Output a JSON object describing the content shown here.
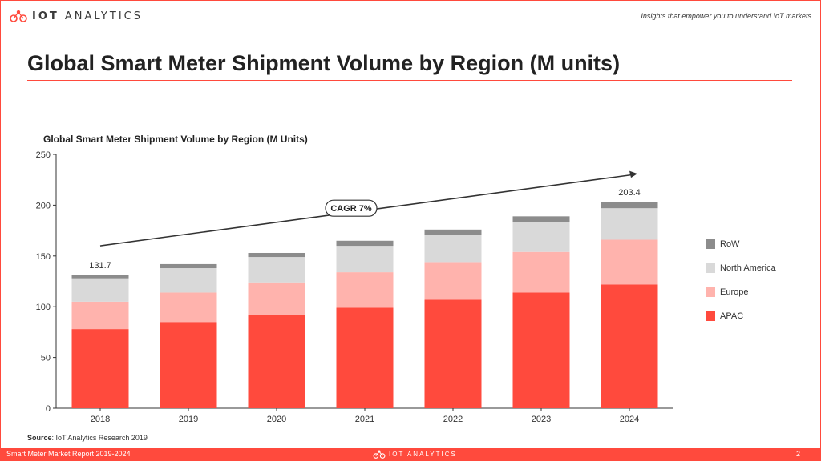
{
  "header": {
    "logo_iot": "IOT",
    "logo_rest": "ANALYTICS",
    "tagline": "Insights that empower you to understand IoT markets"
  },
  "slide_title": "Global Smart Meter Shipment Volume by Region (M units)",
  "chart_data": {
    "type": "bar",
    "stacked": true,
    "title": "Global Smart Meter Shipment Volume by Region (M Units)",
    "categories": [
      "2018",
      "2019",
      "2020",
      "2021",
      "2022",
      "2023",
      "2024"
    ],
    "series": [
      {
        "name": "APAC",
        "color": "#ff4a3d",
        "values": [
          78,
          85,
          92,
          99,
          107,
          114,
          122
        ]
      },
      {
        "name": "Europe",
        "color": "#ffb3ad",
        "values": [
          27,
          29,
          32,
          35,
          37,
          40,
          44
        ]
      },
      {
        "name": "North America",
        "color": "#d9d9d9",
        "values": [
          23,
          24,
          25,
          26,
          27,
          29,
          31
        ]
      },
      {
        "name": "RoW",
        "color": "#8c8c8c",
        "values": [
          3.7,
          4,
          4,
          5,
          5,
          6,
          6.4
        ]
      }
    ],
    "ylim": [
      0,
      250
    ],
    "yticks": [
      0,
      50,
      100,
      150,
      200,
      250
    ],
    "data_labels": [
      {
        "category": "2018",
        "text": "131.7"
      },
      {
        "category": "2024",
        "text": "203.4"
      }
    ],
    "annotation": "CAGR 7%",
    "grid": false,
    "legend_position": "right"
  },
  "source": {
    "label": "Source",
    "text": ": IoT Analytics Research 2019"
  },
  "footer": {
    "report": "Smart Meter Market Report 2019-2024",
    "page": "2",
    "logo_text": "IOT ANALYTICS"
  },
  "colors": {
    "accent": "#ff4a3d"
  }
}
